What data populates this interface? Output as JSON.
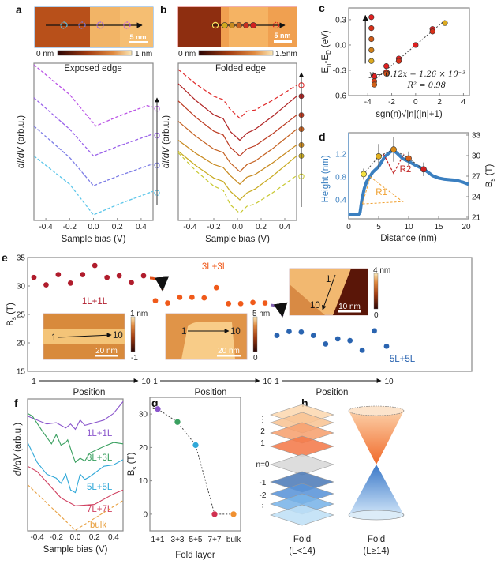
{
  "panels": {
    "a": {
      "label": "a",
      "title": "Exposed edge",
      "colorbar": {
        "min": "0 nm",
        "max": "1 nm"
      },
      "scalebar": "5 nm"
    },
    "b": {
      "label": "b",
      "title": "Folded edge",
      "colorbar": {
        "min": "0 nm",
        "max": "1.5nm"
      },
      "scalebar": "5 nm"
    },
    "c": {
      "label": "c"
    },
    "d": {
      "label": "d"
    },
    "e": {
      "label": "e"
    },
    "f": {
      "label": "f"
    },
    "g": {
      "label": "g"
    },
    "h": {
      "label": "h",
      "left_title": "Fold",
      "left_sub": "(L<14)",
      "right_title": "Fold",
      "right_sub": "(L≥14)",
      "levels": [
        "⋮",
        "2",
        "1",
        "n=0",
        "-1",
        "-2",
        "⋮"
      ]
    }
  },
  "chart_data": [
    {
      "id": "a",
      "type": "line",
      "xlabel": "Sample bias (V)",
      "ylabel_italic": "dI/dV",
      "ylabel_unit": " (arb.u.)",
      "xlim": [
        -0.5,
        0.5
      ],
      "xticks": [
        "-0.4",
        "-0.2",
        "0.0",
        "0.2",
        "0.4"
      ],
      "line_style": "dashed",
      "series": [
        {
          "color": "#5cc6ea",
          "points": [
            [
              -0.5,
              4.1
            ],
            [
              -0.2,
              2.3
            ],
            [
              0.0,
              0.35
            ],
            [
              0.2,
              1.0
            ],
            [
              0.5,
              1.85
            ]
          ]
        },
        {
          "color": "#7d7de6",
          "points": [
            [
              -0.5,
              6.0
            ],
            [
              -0.2,
              4.0
            ],
            [
              0.0,
              2.2
            ],
            [
              0.2,
              2.8
            ],
            [
              0.5,
              3.6
            ]
          ]
        },
        {
          "color": "#9a62ea",
          "points": [
            [
              -0.5,
              7.8
            ],
            [
              -0.2,
              5.8
            ],
            [
              0.0,
              4.1
            ],
            [
              0.2,
              4.7
            ],
            [
              0.5,
              5.5
            ]
          ]
        },
        {
          "color": "#bb55e6",
          "points": [
            [
              -0.5,
              9.9
            ],
            [
              -0.2,
              8.0
            ],
            [
              0.02,
              6.0
            ],
            [
              0.2,
              6.6
            ],
            [
              0.45,
              7.3
            ],
            [
              0.5,
              7.2
            ]
          ]
        }
      ]
    },
    {
      "id": "b",
      "type": "line",
      "xlabel": "Sample bias (V)",
      "ylabel_italic": "dI/dV",
      "ylabel_unit": " (arb.u.)",
      "xlim": [
        -0.5,
        0.5
      ],
      "xticks": [
        "-0.4",
        "-0.2",
        "0.0",
        "0.2",
        "0.4"
      ],
      "series": [
        {
          "color": "#c8c830",
          "dashed": true,
          "start": 4.3,
          "min": 0.45,
          "end": 2.85
        },
        {
          "color": "#c8aa20",
          "dashed": false,
          "start": 4.4,
          "min": 1.3,
          "end": 4.1
        },
        {
          "color": "#c88a20",
          "dashed": false,
          "start": 5.1,
          "min": 2.3,
          "end": 4.8
        },
        {
          "color": "#c46020",
          "dashed": false,
          "start": 6.3,
          "min": 3.1,
          "end": 5.8
        },
        {
          "color": "#bb3a20",
          "dashed": false,
          "start": 7.6,
          "min": 4.1,
          "end": 6.7
        },
        {
          "color": "#b02424",
          "dashed": false,
          "start": 8.7,
          "min": 5.1,
          "end": 7.9
        },
        {
          "color": "#e02a2a",
          "dashed": true,
          "start": 9.6,
          "min": 6.5,
          "end": 8.6
        }
      ]
    },
    {
      "id": "c",
      "type": "scatter",
      "xlabel": "sgn(n)√|n|(|n|+1)",
      "ylabel": {
        "e": "E",
        "n": "n",
        "mid": "-E",
        "d": "D",
        "unit": " (eV)"
      },
      "xlim": [
        -5.6,
        4.5
      ],
      "ylim": [
        -0.6,
        0.44
      ],
      "xticks": [
        -4,
        -2,
        0,
        2,
        4
      ],
      "yticks": [
        0.3,
        0.0,
        -0.3,
        -0.6
      ],
      "xtick_labels": [
        "-4",
        "-2",
        "0",
        "2",
        "4"
      ],
      "ytick_labels": [
        "0.3",
        "0.0",
        "-0.3",
        "-0.6"
      ],
      "fit": {
        "slope": 0.12,
        "intercept": -0.00126,
        "equation": "y = 0.12x − 1.26 × 10⁻³",
        "r2": "R² = 0.98"
      },
      "legend_points": [
        {
          "y": 0.33,
          "color": "#e02020"
        },
        {
          "y": 0.2,
          "color": "#d83018"
        },
        {
          "y": 0.07,
          "color": "#d05a18"
        },
        {
          "y": -0.06,
          "color": "#d08018"
        },
        {
          "y": -0.19,
          "color": "#dcaa20"
        }
      ],
      "points": [
        {
          "x": -3.46,
          "y": -0.37,
          "color": "#e02020"
        },
        {
          "x": -3.46,
          "y": -0.43,
          "color": "#d84018"
        },
        {
          "x": -3.46,
          "y": -0.47,
          "color": "#d06018"
        },
        {
          "x": -2.45,
          "y": -0.25,
          "color": "#e02020"
        },
        {
          "x": -2.45,
          "y": -0.32,
          "color": "#d83018"
        },
        {
          "x": -2.45,
          "y": -0.34,
          "color": "#d05018"
        },
        {
          "x": -1.41,
          "y": -0.16,
          "color": "#e02020"
        },
        {
          "x": -1.41,
          "y": -0.19,
          "color": "#d83018"
        },
        {
          "x": 0,
          "y": 0.0,
          "color": "#e02020"
        },
        {
          "x": 1.41,
          "y": 0.19,
          "color": "#e02020"
        },
        {
          "x": 1.41,
          "y": 0.16,
          "color": "#d83018"
        },
        {
          "x": 2.45,
          "y": 0.26,
          "color": "#dcaa20"
        }
      ]
    },
    {
      "id": "d",
      "type": "line+scatter",
      "xlabel": "Distance (nm)",
      "ylabel_left": "Height (nm)",
      "ylabel_right": {
        "b": "B",
        "s": "s",
        "unit": " (T)"
      },
      "xlim": [
        0,
        20
      ],
      "ylim_left": [
        0.07,
        1.57
      ],
      "ylim_right": [
        21,
        33
      ],
      "xticks": [
        0,
        5,
        10,
        15,
        20
      ],
      "yticks_left": [
        0.4,
        0.8,
        1.2
      ],
      "yticks_right": [
        21,
        24,
        27,
        30,
        33
      ],
      "height_color": "#3a7fc0",
      "height": [
        [
          0,
          0.15
        ],
        [
          1.6,
          0.14
        ],
        [
          1.9,
          0.18
        ],
        [
          2.2,
          0.4
        ],
        [
          2.6,
          0.6
        ],
        [
          3,
          0.72
        ],
        [
          3.5,
          0.8
        ],
        [
          4,
          0.88
        ],
        [
          5,
          0.98
        ],
        [
          6,
          1.15
        ],
        [
          7,
          1.24
        ],
        [
          7.5,
          1.26
        ],
        [
          8,
          1.22
        ],
        [
          9,
          1.12
        ],
        [
          10,
          1.07
        ],
        [
          11,
          1.01
        ],
        [
          12,
          0.96
        ],
        [
          13,
          0.9
        ],
        [
          14,
          0.82
        ],
        [
          15,
          0.78
        ],
        [
          16,
          0.76
        ],
        [
          17,
          0.75
        ],
        [
          18,
          0.74
        ],
        [
          19,
          0.71
        ],
        [
          20,
          0.67
        ]
      ],
      "bs_points": [
        {
          "x": 2.5,
          "y": 27.3,
          "err": 0.8,
          "color": "#f4e040"
        },
        {
          "x": 5,
          "y": 29.9,
          "err": 1.8,
          "color": "#e0b020"
        },
        {
          "x": 7.5,
          "y": 30.9,
          "err": 1.8,
          "color": "#d88a18"
        },
        {
          "x": 10,
          "y": 29.6,
          "err": 1.0,
          "color": "#d86018"
        },
        {
          "x": 12.5,
          "y": 28.0,
          "err": 1.0,
          "color": "#d02020"
        }
      ],
      "annotations": [
        {
          "text": "R1",
          "color": "#f0a030"
        },
        {
          "text": "R2",
          "color": "#c02020"
        }
      ]
    },
    {
      "id": "e",
      "type": "scatter",
      "ylabel": {
        "b": "B",
        "s": "s",
        "unit": " (T)"
      },
      "ylim": [
        15,
        35
      ],
      "yticks": [
        15,
        20,
        25,
        30,
        35
      ],
      "xlabel": "Position",
      "xtick_start": "1",
      "xtick_end": "10",
      "groups": [
        {
          "name": "1L+1L",
          "color": "#b01c2c",
          "values": [
            31.5,
            30.2,
            32.0,
            30.5,
            32.0,
            33.6,
            31.5,
            31.8,
            30.6,
            31.8
          ],
          "inset": {
            "scalebar": "20 nm",
            "cb_max": "1 nm",
            "cb_min": "-1",
            "start": "1",
            "end": "10"
          }
        },
        {
          "name": "3L+3L",
          "color": "#f05a1a",
          "values": [
            27.4,
            27.0,
            28.0,
            28.0,
            27.9,
            29.7,
            26.9,
            26.9,
            27.1,
            27.0
          ],
          "inset": {
            "scalebar": "20 nm",
            "cb_max": "5 nm",
            "cb_min": "0",
            "start": "1",
            "end": "10"
          }
        },
        {
          "name": "5L+5L",
          "color": "#2a64b0",
          "values": [
            21.3,
            22.0,
            21.9,
            21.3,
            19.8,
            20.7,
            20.4,
            18.7,
            22.1,
            19.4
          ],
          "inset": {
            "scalebar": "10 nm",
            "cb_max": "4 nm",
            "cb_min": "0",
            "start": "1",
            "end": "10"
          }
        }
      ]
    },
    {
      "id": "f",
      "type": "line",
      "xlabel": "Sample bias (V)",
      "ylabel_italic": "dI/dV",
      "ylabel_unit": " (arb.u.)",
      "xlim": [
        -0.5,
        0.5
      ],
      "xticks": [
        "-0.4",
        "-0.2",
        "0.0",
        "0.2",
        "0.4"
      ],
      "series": [
        {
          "name": "1L+1L",
          "color": "#8a55cc",
          "points": [
            [
              -0.5,
              8.7
            ],
            [
              -0.4,
              8.4
            ],
            [
              -0.3,
              8.1
            ],
            [
              -0.2,
              8.2
            ],
            [
              -0.1,
              7.8
            ],
            [
              -0.05,
              8.1
            ],
            [
              0,
              7.7
            ],
            [
              0.05,
              8.4
            ],
            [
              0.1,
              8.0
            ],
            [
              0.2,
              8.2
            ],
            [
              0.3,
              8.4
            ],
            [
              0.4,
              8.9
            ],
            [
              0.5,
              9.8
            ]
          ]
        },
        {
          "name": "3L+3L",
          "color": "#3aa060",
          "points": [
            [
              -0.5,
              8.9
            ],
            [
              -0.45,
              8.7
            ],
            [
              -0.35,
              7.6
            ],
            [
              -0.25,
              6.6
            ],
            [
              -0.2,
              7.3
            ],
            [
              -0.15,
              6.5
            ],
            [
              -0.1,
              6.7
            ],
            [
              -0.08,
              6.9
            ],
            [
              -0.03,
              5.8
            ],
            [
              0,
              5.2
            ],
            [
              0.05,
              5.5
            ],
            [
              0.1,
              5.3
            ],
            [
              0.15,
              5.9
            ],
            [
              0.3,
              6.4
            ],
            [
              0.4,
              6.7
            ],
            [
              0.5,
              6.6
            ]
          ]
        },
        {
          "name": "5L+5L",
          "color": "#30a8d8",
          "points": [
            [
              -0.5,
              6.7
            ],
            [
              -0.4,
              5.2
            ],
            [
              -0.3,
              4.3
            ],
            [
              -0.2,
              4.0
            ],
            [
              -0.15,
              3.6
            ],
            [
              -0.1,
              4.3
            ],
            [
              -0.05,
              3.1
            ],
            [
              0,
              2.9
            ],
            [
              0.05,
              4.3
            ],
            [
              0.1,
              3.9
            ],
            [
              0.15,
              4.1
            ],
            [
              0.3,
              4.9
            ],
            [
              0.4,
              5.0
            ],
            [
              0.5,
              5.4
            ]
          ]
        },
        {
          "name": "7L+7L",
          "color": "#d04060",
          "points": [
            [
              -0.5,
              4.9
            ],
            [
              -0.4,
              4.5
            ],
            [
              -0.3,
              3.7
            ],
            [
              -0.15,
              2.5
            ],
            [
              0,
              1.9
            ],
            [
              0.2,
              2.0
            ],
            [
              0.4,
              2.8
            ],
            [
              0.5,
              3.1
            ]
          ]
        },
        {
          "name": "bulk",
          "color": "#e8a040",
          "dashed": true,
          "points": [
            [
              -0.5,
              3.5
            ],
            [
              0,
              0.05
            ],
            [
              0.5,
              2.3
            ]
          ]
        }
      ]
    },
    {
      "id": "g",
      "type": "scatter",
      "xlabel": "Fold layer",
      "ylabel": {
        "b": "B",
        "s": "s",
        "unit": " (T)"
      },
      "ylim": [
        -5,
        35
      ],
      "yticks": [
        0,
        10,
        20,
        30
      ],
      "ytick_labels": [
        "0",
        "10",
        "20",
        "30"
      ],
      "categories": [
        "1+1",
        "3+3",
        "5+5",
        "7+7",
        "bulk"
      ],
      "values": [
        31.5,
        27.6,
        20.7,
        0,
        0
      ],
      "colors": [
        "#8a55cc",
        "#3aa060",
        "#30a8d8",
        "#d03050",
        "#f09030"
      ]
    }
  ]
}
